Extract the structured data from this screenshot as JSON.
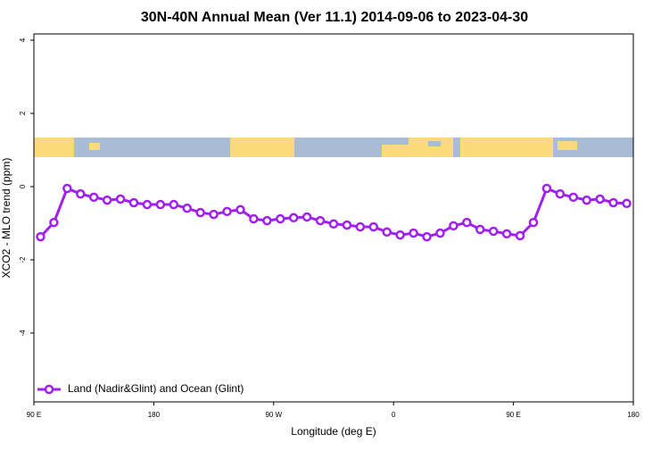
{
  "chart_data": {
    "type": "line",
    "title": "30N-40N Annual Mean (Ver 11.1)   2014-09-06 to 2023-04-30",
    "x_label": "Longitude (deg E)",
    "y_label": "XCO2 - MLO trend (ppm)",
    "x": [
      95,
      105,
      115,
      125,
      135,
      145,
      155,
      165,
      175,
      185,
      195,
      205,
      215,
      225,
      235,
      245,
      255,
      265,
      275,
      285,
      295,
      305,
      315,
      325,
      335,
      345,
      355,
      365,
      375,
      385,
      395,
      405,
      415,
      425,
      435,
      445,
      455,
      465,
      475,
      485,
      495,
      505,
      515,
      525,
      535
    ],
    "series": [
      {
        "name": "Land (Nadir&Glint) and Ocean (Glint)",
        "color": "#a020f0",
        "values": [
          -1.37,
          -0.98,
          -0.05,
          -0.2,
          -0.29,
          -0.37,
          -0.34,
          -0.44,
          -0.49,
          -0.49,
          -0.49,
          -0.59,
          -0.71,
          -0.76,
          -0.68,
          -0.63,
          -0.88,
          -0.93,
          -0.88,
          -0.85,
          -0.83,
          -0.93,
          -1.02,
          -1.05,
          -1.1,
          -1.1,
          -1.24,
          -1.32,
          -1.27,
          -1.37,
          -1.27,
          -1.07,
          -0.98,
          -1.17,
          -1.22,
          -1.29,
          -1.34,
          -0.98,
          -0.05,
          -0.2,
          -0.29,
          -0.37,
          -0.34,
          -0.44,
          -0.46
        ]
      }
    ],
    "xlim": [
      90,
      540
    ],
    "xticks": [
      {
        "value": 90,
        "label": "90 E"
      },
      180,
      {
        "value": 270,
        "label": "90 W"
      },
      {
        "value": 360,
        "label": "0"
      },
      {
        "value": 450,
        "label": "90 E"
      },
      {
        "value": 540,
        "label": "180"
      }
    ],
    "ylim": [
      -5.88,
      4.17
    ],
    "yticks": [
      -4,
      -2,
      0,
      2,
      4
    ],
    "legend": "bottom-left"
  }
}
